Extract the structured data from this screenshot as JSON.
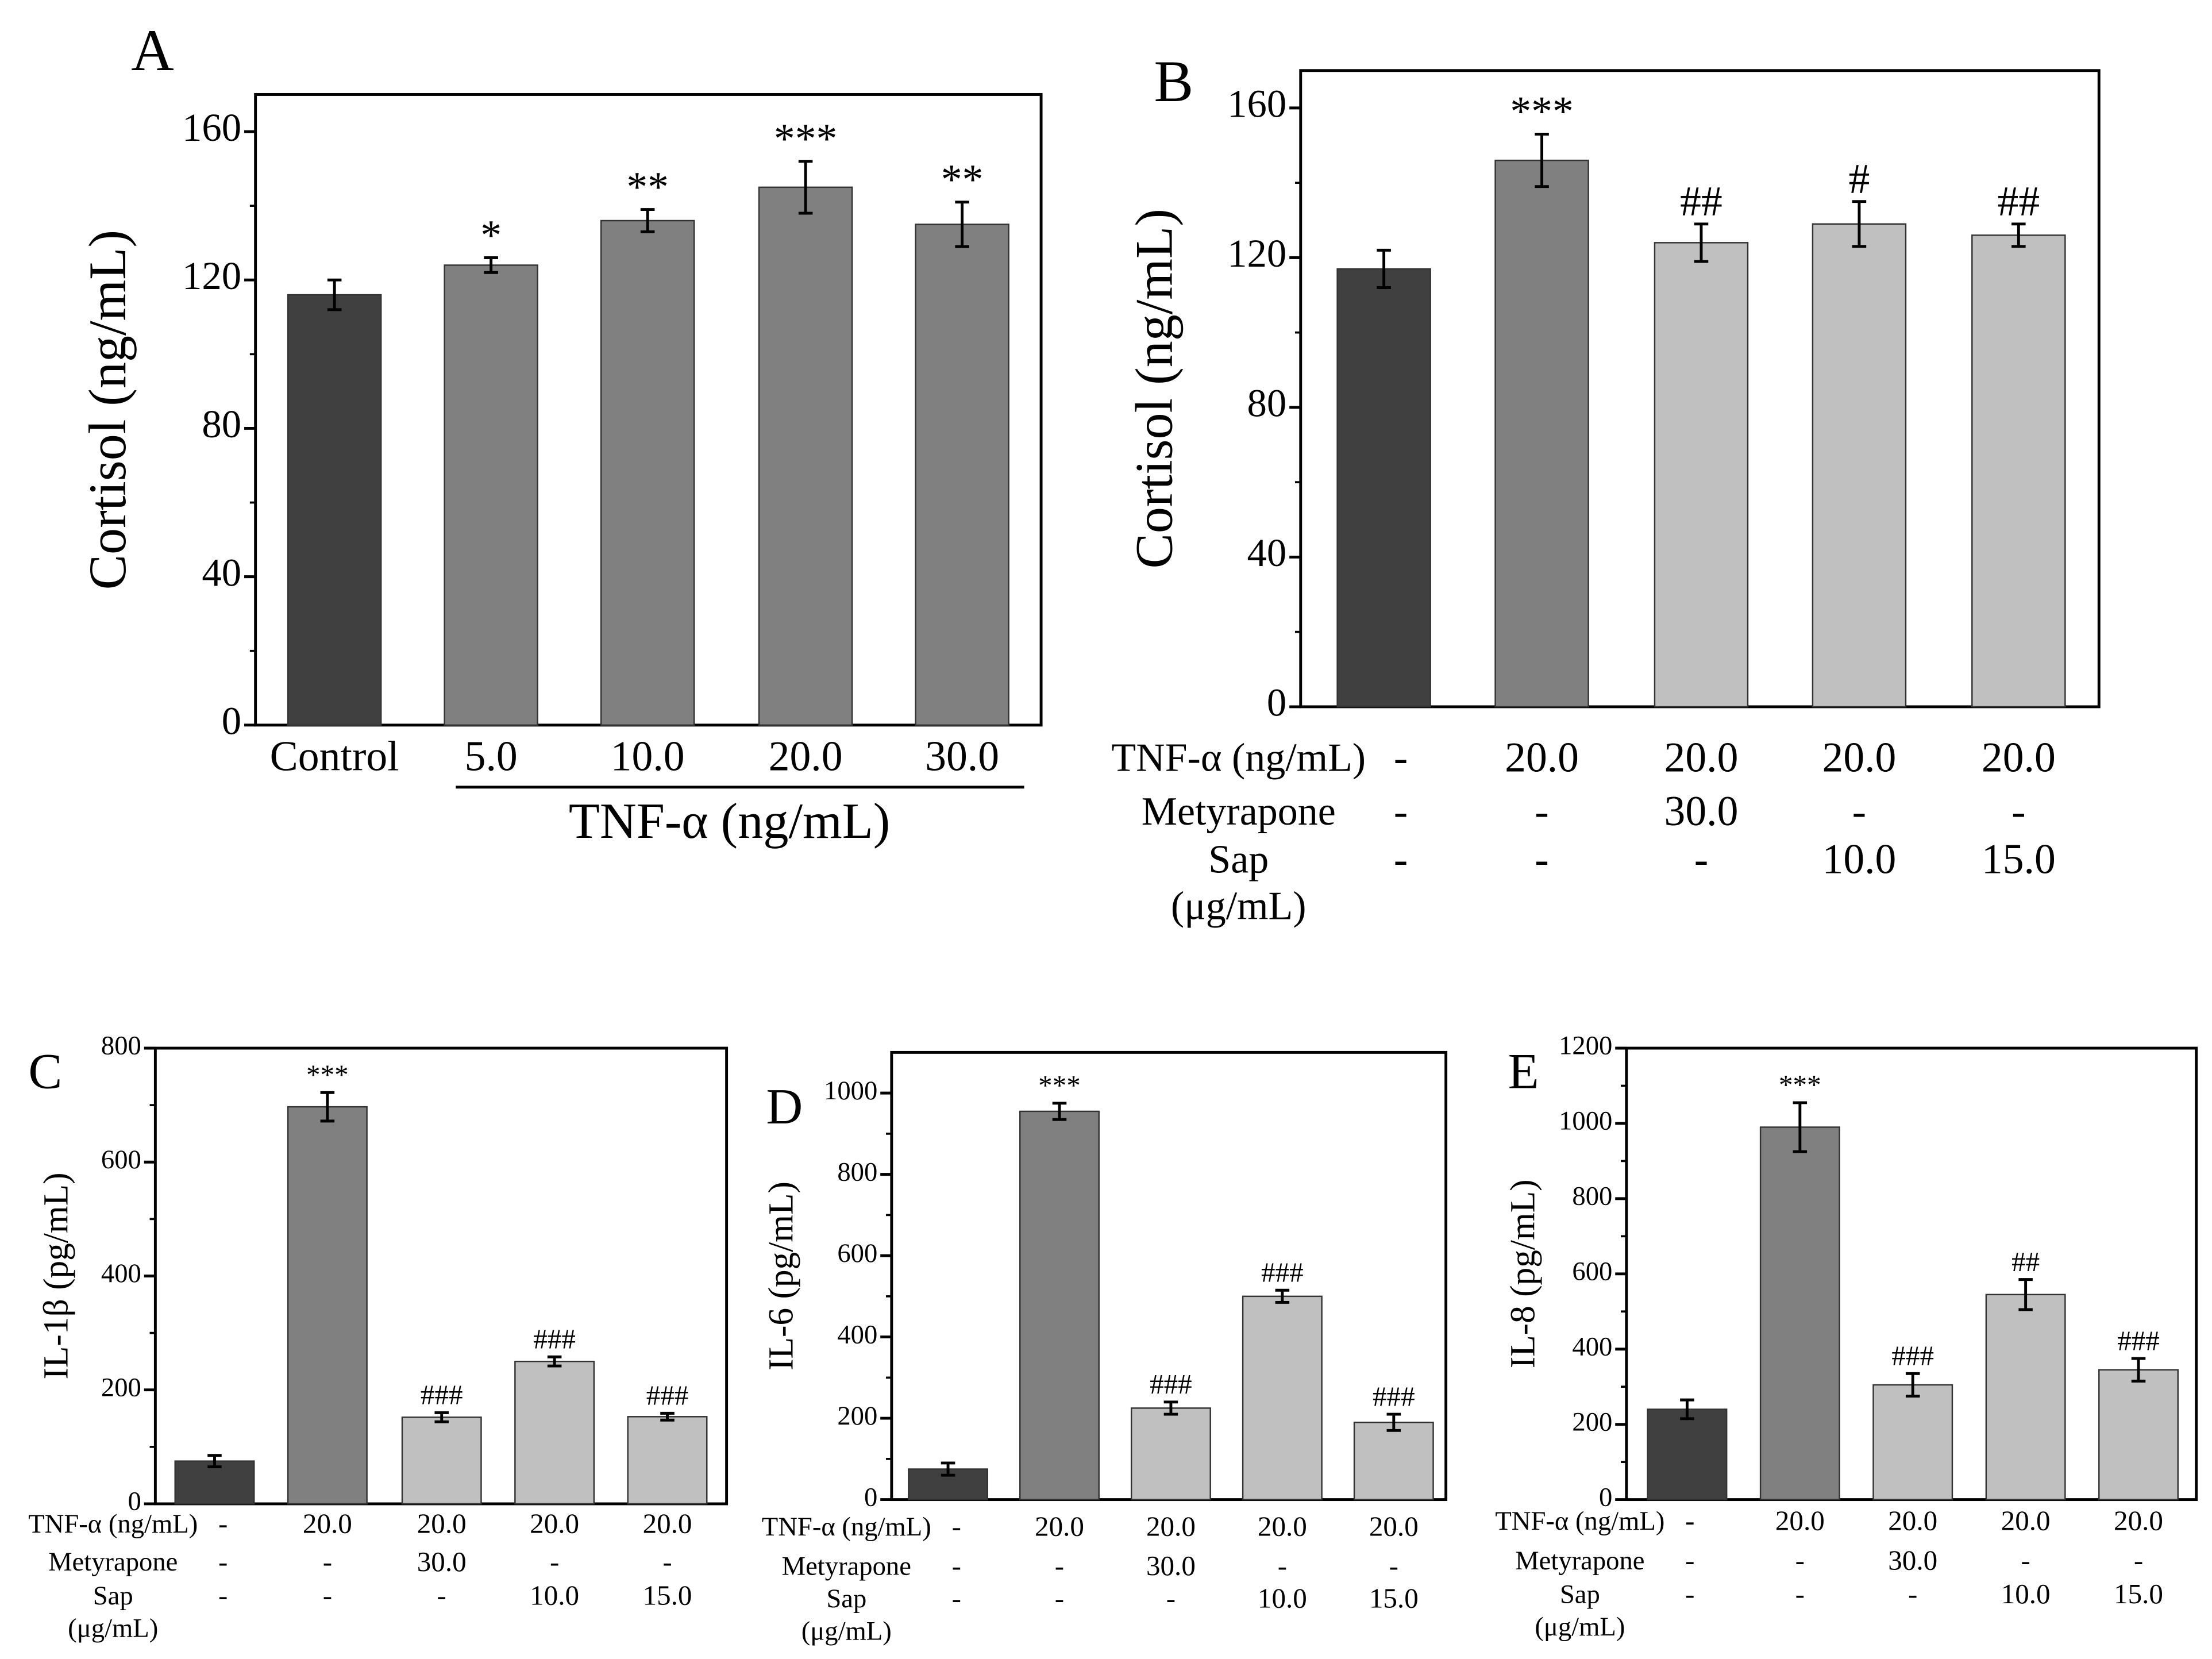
{
  "colors": {
    "dark": "#404040",
    "mid": "#808080",
    "light": "#c0c0c0"
  },
  "chart_data": [
    {
      "panel": "A",
      "type": "bar",
      "ylabel": "Cortisol (ng/mL)",
      "ylim": [
        0,
        170
      ],
      "yticks": [
        0,
        40,
        80,
        120,
        160
      ],
      "categories": [
        "Control",
        "5.0",
        "10.0",
        "20.0",
        "30.0"
      ],
      "group_label": "TNF-α (ng/mL)",
      "values": [
        116,
        124,
        136,
        145,
        135
      ],
      "errors": [
        4,
        2,
        3,
        7,
        6
      ],
      "annotations": [
        "",
        "*",
        "**",
        "***",
        "**"
      ],
      "shades": [
        "dark",
        "mid",
        "mid",
        "mid",
        "mid"
      ]
    },
    {
      "panel": "B",
      "type": "bar",
      "ylabel": "Cortisol (ng/mL)",
      "ylim": [
        0,
        170
      ],
      "yticks": [
        0,
        40,
        80,
        120,
        160
      ],
      "rows": [
        {
          "label": "TNF-α (ng/mL)",
          "values": [
            "-",
            "20.0",
            "20.0",
            "20.0",
            "20.0"
          ]
        },
        {
          "label": "Metyrapone",
          "values": [
            "-",
            "-",
            "30.0",
            "-",
            "-"
          ]
        },
        {
          "label": "Sap",
          "label2": "(μg/mL)",
          "values": [
            "-",
            "-",
            "-",
            "10.0",
            "15.0"
          ]
        }
      ],
      "values": [
        117,
        146,
        124,
        129,
        126
      ],
      "errors": [
        5,
        7,
        5,
        6,
        3
      ],
      "annotations": [
        "",
        "***",
        "##",
        "#",
        "##"
      ],
      "shades": [
        "dark",
        "mid",
        "light",
        "light",
        "light"
      ]
    },
    {
      "panel": "C",
      "type": "bar",
      "ylabel": "IL-1β (pg/mL)",
      "ylim": [
        0,
        800
      ],
      "yticks": [
        0,
        200,
        400,
        600,
        800
      ],
      "rows": [
        {
          "label": "TNF-α (ng/mL)",
          "values": [
            "-",
            "20.0",
            "20.0",
            "20.0",
            "20.0"
          ]
        },
        {
          "label": "Metyrapone",
          "values": [
            "-",
            "-",
            "30.0",
            "-",
            "-"
          ]
        },
        {
          "label": "Sap",
          "label2": "(μg/mL)",
          "values": [
            "-",
            "-",
            "-",
            "10.0",
            "15.0"
          ]
        }
      ],
      "values": [
        75,
        697,
        152,
        250,
        153
      ],
      "errors": [
        10,
        25,
        8,
        8,
        6
      ],
      "annotations": [
        "",
        "***",
        "###",
        "###",
        "###"
      ],
      "shades": [
        "dark",
        "mid",
        "light",
        "light",
        "light"
      ]
    },
    {
      "panel": "D",
      "type": "bar",
      "ylabel": "IL-6 (pg/mL)",
      "ylim": [
        0,
        1100
      ],
      "yticks": [
        0,
        200,
        400,
        600,
        800,
        1000
      ],
      "rows": [
        {
          "label": "TNF-α (ng/mL)",
          "values": [
            "-",
            "20.0",
            "20.0",
            "20.0",
            "20.0"
          ]
        },
        {
          "label": "Metyrapone",
          "values": [
            "-",
            "-",
            "30.0",
            "-",
            "-"
          ]
        },
        {
          "label": "Sap",
          "label2": "(μg/mL)",
          "values": [
            "-",
            "-",
            "-",
            "10.0",
            "15.0"
          ]
        }
      ],
      "values": [
        75,
        955,
        225,
        500,
        190
      ],
      "errors": [
        15,
        20,
        15,
        15,
        20
      ],
      "annotations": [
        "",
        "***",
        "###",
        "###",
        "###"
      ],
      "shades": [
        "dark",
        "mid",
        "light",
        "light",
        "light"
      ]
    },
    {
      "panel": "E",
      "type": "bar",
      "ylabel": "IL-8 (pg/mL)",
      "ylim": [
        0,
        1200
      ],
      "yticks": [
        0,
        200,
        400,
        600,
        800,
        1000,
        1200
      ],
      "rows": [
        {
          "label": "TNF-α (ng/mL)",
          "values": [
            "-",
            "20.0",
            "20.0",
            "20.0",
            "20.0"
          ]
        },
        {
          "label": "Metyrapone",
          "values": [
            "-",
            "-",
            "30.0",
            "-",
            "-"
          ]
        },
        {
          "label": "Sap",
          "label2": "(μg/mL)",
          "values": [
            "-",
            "-",
            "-",
            "10.0",
            "15.0"
          ]
        }
      ],
      "values": [
        240,
        990,
        305,
        545,
        345
      ],
      "errors": [
        25,
        65,
        30,
        40,
        30
      ],
      "annotations": [
        "",
        "***",
        "###",
        "##",
        "###"
      ],
      "shades": [
        "dark",
        "mid",
        "light",
        "light",
        "light"
      ]
    }
  ]
}
